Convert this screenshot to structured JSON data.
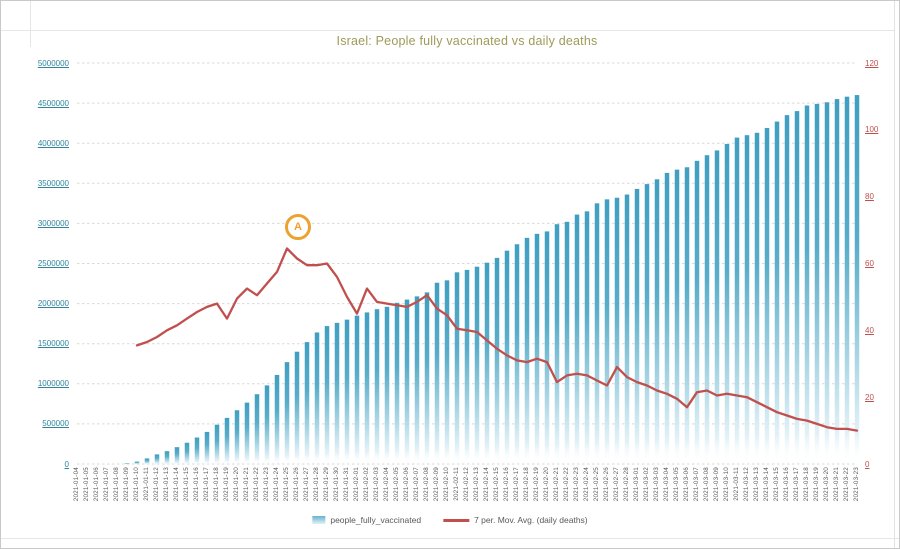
{
  "title": {
    "text": "Israel: People fully vaccinated vs daily deaths",
    "color": "#9f9a58"
  },
  "annotation": {
    "label": "A",
    "color": "#eca22f",
    "series": "7 per. Mov. Avg. (daily deaths)",
    "date": "2021-01-25"
  },
  "legend": {
    "items": [
      {
        "label": "people_fully_vaccinated",
        "swatch": "bar-gradient-swatch"
      },
      {
        "label": "7 per. Mov. Avg. (daily deaths)",
        "swatch": "line-swatch"
      }
    ]
  },
  "colors": {
    "bar_top": "#3f9fc1",
    "bar_mid": "#58adc9",
    "bar_fade": "#e4f2f7",
    "line": "#c0504d",
    "left_axis_labels": "#31859b",
    "right_axis_labels": "#c0504d",
    "gridline": "#d9d9d9"
  },
  "chart_data": {
    "type": "bar",
    "title": "Israel: People fully vaccinated vs daily deaths",
    "xlabel": "",
    "ylabel_left": "",
    "ylabel_right": "",
    "left_axis": {
      "min": 0,
      "max": 5000000,
      "step": 500000,
      "tick_labels": [
        "0",
        "500000",
        "1000000",
        "1500000",
        "2000000",
        "2500000",
        "3000000",
        "3500000",
        "4000000",
        "4500000",
        "5000000"
      ]
    },
    "right_axis": {
      "min": 0,
      "max": 120,
      "step": 20,
      "tick_labels": [
        "0",
        "20",
        "40",
        "60",
        "80",
        "100",
        "120"
      ]
    },
    "grid": "horizontal-dashed",
    "legend_position": "bottom",
    "categories": [
      "2021-01-04",
      "2021-01-05",
      "2021-01-06",
      "2021-01-07",
      "2021-01-08",
      "2021-01-09",
      "2021-01-10",
      "2021-01-11",
      "2021-01-12",
      "2021-01-13",
      "2021-01-14",
      "2021-01-15",
      "2021-01-16",
      "2021-01-17",
      "2021-01-18",
      "2021-01-19",
      "2021-01-20",
      "2021-01-21",
      "2021-01-22",
      "2021-01-23",
      "2021-01-24",
      "2021-01-25",
      "2021-01-26",
      "2021-01-27",
      "2021-01-28",
      "2021-01-29",
      "2021-01-30",
      "2021-01-31",
      "2021-02-01",
      "2021-02-02",
      "2021-02-03",
      "2021-02-04",
      "2021-02-05",
      "2021-02-06",
      "2021-02-07",
      "2021-02-08",
      "2021-02-09",
      "2021-02-10",
      "2021-02-11",
      "2021-02-12",
      "2021-02-13",
      "2021-02-14",
      "2021-02-15",
      "2021-02-16",
      "2021-02-17",
      "2021-02-18",
      "2021-02-19",
      "2021-02-20",
      "2021-02-21",
      "2021-02-22",
      "2021-02-23",
      "2021-02-24",
      "2021-02-25",
      "2021-02-26",
      "2021-02-27",
      "2021-02-28",
      "2021-03-01",
      "2021-03-02",
      "2021-03-03",
      "2021-03-04",
      "2021-03-05",
      "2021-03-06",
      "2021-03-07",
      "2021-03-08",
      "2021-03-09",
      "2021-03-10",
      "2021-03-11",
      "2021-03-12",
      "2021-03-13",
      "2021-03-14",
      "2021-03-15",
      "2021-03-16",
      "2021-03-17",
      "2021-03-18",
      "2021-03-19",
      "2021-03-20",
      "2021-03-21",
      "2021-03-22",
      "2021-03-23"
    ],
    "series": [
      {
        "name": "people_fully_vaccinated",
        "type": "bar",
        "axis": "left",
        "values": [
          0,
          0,
          0,
          0,
          0,
          10000,
          30000,
          70000,
          120000,
          160000,
          210000,
          265000,
          330000,
          400000,
          490000,
          575000,
          670000,
          765000,
          870000,
          980000,
          1110000,
          1270000,
          1400000,
          1520000,
          1640000,
          1720000,
          1760000,
          1800000,
          1850000,
          1890000,
          1930000,
          1960000,
          2010000,
          2050000,
          2090000,
          2140000,
          2260000,
          2290000,
          2390000,
          2420000,
          2460000,
          2510000,
          2570000,
          2660000,
          2740000,
          2820000,
          2870000,
          2900000,
          2990000,
          3020000,
          3110000,
          3150000,
          3250000,
          3300000,
          3320000,
          3360000,
          3430000,
          3490000,
          3550000,
          3630000,
          3670000,
          3700000,
          3780000,
          3850000,
          3910000,
          3990000,
          4070000,
          4100000,
          4130000,
          4190000,
          4270000,
          4350000,
          4400000,
          4470000,
          4490000,
          4510000,
          4550000,
          4580000,
          4600000
        ]
      },
      {
        "name": "7 per. Mov. Avg. (daily deaths)",
        "type": "line",
        "axis": "right",
        "values": [
          null,
          null,
          null,
          null,
          null,
          null,
          35.5,
          36.5,
          38,
          40,
          41.5,
          43.5,
          45.5,
          47,
          48,
          43.5,
          49.5,
          52.5,
          50.5,
          54,
          57.5,
          64.5,
          61.5,
          59.5,
          59.5,
          60,
          56,
          50,
          45,
          52.5,
          48.5,
          48,
          47.5,
          47,
          48.5,
          50.5,
          46.5,
          44.5,
          40.5,
          40,
          39.5,
          37,
          34.5,
          32.5,
          31,
          30.5,
          31.5,
          30.5,
          24.5,
          26.5,
          27,
          26.5,
          25,
          23.5,
          29,
          26,
          24.5,
          23.5,
          22,
          21,
          19.5,
          17,
          21.5,
          22,
          20.5,
          21,
          20.5,
          20,
          18.5,
          17,
          15.5,
          14.5,
          13.5,
          13,
          12,
          11,
          10.5,
          10.5,
          10
        ]
      }
    ]
  }
}
